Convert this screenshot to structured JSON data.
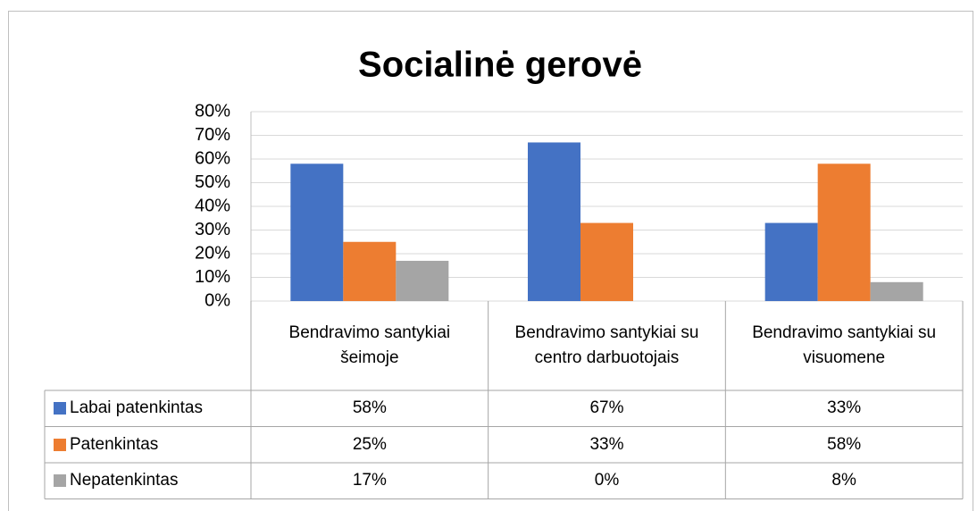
{
  "chart_data": {
    "type": "bar",
    "title": "Socialinė gerovė",
    "categories": [
      "Bendravimo santykiai šeimoje",
      "Bendravimo santykiai su centro darbuotojais",
      "Bendravimo santykiai su visuomene"
    ],
    "series": [
      {
        "name": "Labai patenkintas",
        "color": "#4472c4",
        "values": [
          58,
          67,
          33
        ],
        "value_labels": [
          "58%",
          "67%",
          "33%"
        ]
      },
      {
        "name": "Patenkintas",
        "color": "#ed7d31",
        "values": [
          25,
          33,
          58
        ],
        "value_labels": [
          "25%",
          "33%",
          "58%"
        ]
      },
      {
        "name": "Nepatenkintas",
        "color": "#a5a5a5",
        "values": [
          17,
          0,
          8
        ],
        "value_labels": [
          "17%",
          "0%",
          "8%"
        ]
      }
    ],
    "ylim": [
      0,
      80
    ],
    "yticks": [
      {
        "value": 0,
        "label": "0%"
      },
      {
        "value": 10,
        "label": "10%"
      },
      {
        "value": 20,
        "label": "20%"
      },
      {
        "value": 30,
        "label": "30%"
      },
      {
        "value": 40,
        "label": "40%"
      },
      {
        "value": 50,
        "label": "50%"
      },
      {
        "value": 60,
        "label": "60%"
      },
      {
        "value": 70,
        "label": "70%"
      },
      {
        "value": 80,
        "label": "80%"
      }
    ],
    "grid": true
  }
}
